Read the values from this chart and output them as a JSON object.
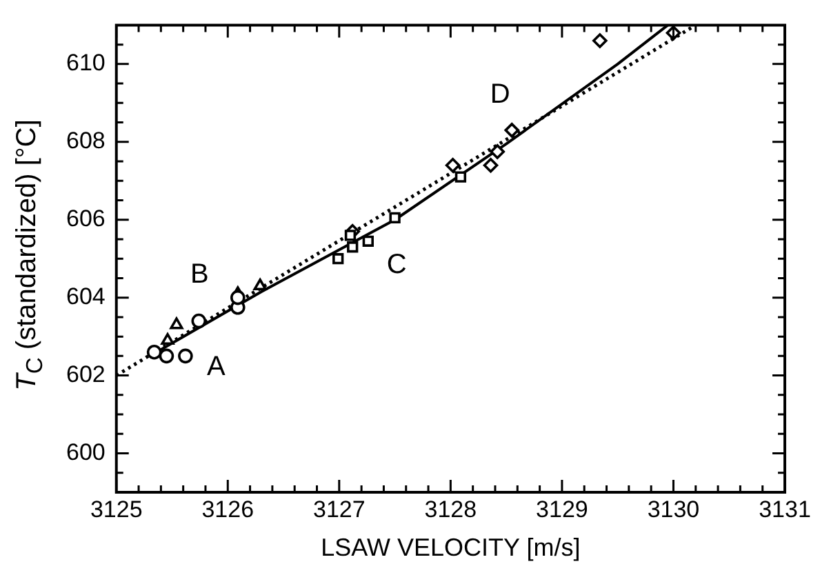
{
  "chart_data": {
    "type": "scatter",
    "xlabel": "LSAW VELOCITY [m/s]",
    "ylabel": "T$_{C}$ (standardized) [°C]",
    "xlim": [
      3125,
      3131
    ],
    "ylim": [
      599,
      611
    ],
    "xticks": [
      3125,
      {
        "value": 3125.2,
        "label": null
      },
      {
        "value": 3125.4,
        "label": null
      },
      {
        "value": 3125.6,
        "label": null
      },
      {
        "value": 3125.8,
        "label": null
      },
      3126,
      {
        "value": 3126.2,
        "label": null
      },
      {
        "value": 3126.4,
        "label": null
      },
      {
        "value": 3126.6,
        "label": null
      },
      {
        "value": 3126.8,
        "label": null
      },
      3127,
      {
        "value": 3127.2,
        "label": null
      },
      {
        "value": 3127.4,
        "label": null
      },
      {
        "value": 3127.6,
        "label": null
      },
      {
        "value": 3127.8,
        "label": null
      },
      3128,
      {
        "value": 3128.2,
        "label": null
      },
      {
        "value": 3128.4,
        "label": null
      },
      {
        "value": 3128.6,
        "label": null
      },
      {
        "value": 3128.8,
        "label": null
      },
      3129,
      {
        "value": 3129.2,
        "label": null
      },
      {
        "value": 3129.4,
        "label": null
      },
      {
        "value": 3129.6,
        "label": null
      },
      {
        "value": 3129.8,
        "label": null
      },
      3130,
      {
        "value": 3130.2,
        "label": null
      },
      {
        "value": 3130.4,
        "label": null
      },
      {
        "value": 3130.6,
        "label": null
      },
      {
        "value": 3130.8,
        "label": null
      },
      3131
    ],
    "yticks": [
      {
        "value": 599.5,
        "label": null
      },
      600,
      {
        "value": 600.5,
        "label": null
      },
      {
        "value": 601,
        "label": null
      },
      {
        "value": 601.5,
        "label": null
      },
      602,
      {
        "value": 602.5,
        "label": null
      },
      {
        "value": 603,
        "label": null
      },
      {
        "value": 603.5,
        "label": null
      },
      604,
      {
        "value": 604.5,
        "label": null
      },
      {
        "value": 605,
        "label": null
      },
      {
        "value": 605.5,
        "label": null
      },
      606,
      {
        "value": 606.5,
        "label": null
      },
      {
        "value": 607,
        "label": null
      },
      {
        "value": 607.5,
        "label": null
      },
      608,
      {
        "value": 608.5,
        "label": null
      },
      {
        "value": 609,
        "label": null
      },
      {
        "value": 609.5,
        "label": null
      },
      610,
      {
        "value": 610.5,
        "label": null
      }
    ],
    "grid": false,
    "legend": false,
    "series": [
      {
        "name": "A",
        "color": "#000000",
        "marker": "circle",
        "x": [
          3125.34,
          3125.45,
          3125.62,
          3125.74,
          3126.09,
          3126.09
        ],
        "values": [
          602.6,
          602.5,
          602.5,
          603.4,
          603.75,
          604.0
        ]
      },
      {
        "name": "B",
        "color": "#000000",
        "marker": "triangle",
        "x": [
          3125.46,
          3125.54,
          3126.09,
          3126.29
        ],
        "values": [
          602.9,
          603.3,
          604.1,
          604.3
        ]
      },
      {
        "name": "C",
        "color": "#000000",
        "marker": "square",
        "x": [
          3126.99,
          3127.12,
          3127.1,
          3127.26,
          3127.5,
          3128.09
        ],
        "values": [
          605.0,
          605.3,
          605.6,
          605.45,
          606.05,
          607.1
        ]
      },
      {
        "name": "D",
        "color": "#000000",
        "marker": "diamond",
        "x": [
          3127.12,
          3128.02,
          3128.36,
          3128.42,
          3128.55,
          3129.34,
          3130.0
        ],
        "values": [
          605.7,
          607.4,
          607.4,
          607.75,
          608.3,
          610.6,
          610.8
        ]
      },
      {
        "type": "line",
        "color": "#000000",
        "marker": "none",
        "line_style": "solid",
        "x": [
          3125.3,
          3126.3,
          3127.5,
          3128.5,
          3129.5,
          3129.95
        ],
        "values": [
          602.5,
          604.15,
          606.0,
          607.95,
          610.0,
          611.0
        ]
      },
      {
        "type": "line",
        "color": "#000000",
        "marker": "none",
        "line_style": "dotted",
        "x": [
          3125,
          3130.2
        ],
        "values": [
          602.0,
          611.0
        ]
      }
    ]
  }
}
